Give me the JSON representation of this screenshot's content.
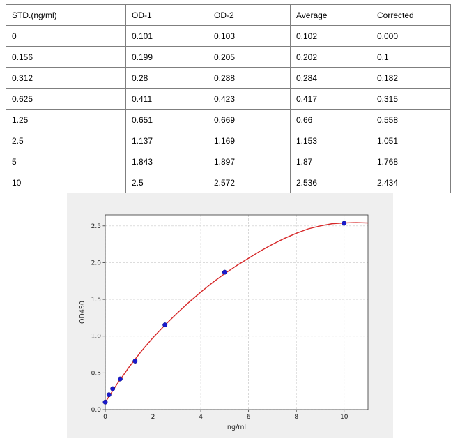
{
  "table": {
    "headers": [
      "STD.(ng/ml)",
      "OD-1",
      "OD-2",
      "Average",
      "Corrected"
    ],
    "rows": [
      [
        "0",
        "0.101",
        "0.103",
        "0.102",
        "0.000"
      ],
      [
        "0.156",
        "0.199",
        "0.205",
        "0.202",
        "0.1"
      ],
      [
        "0.312",
        "0.28",
        "0.288",
        "0.284",
        "0.182"
      ],
      [
        "0.625",
        "0.411",
        "0.423",
        "0.417",
        "0.315"
      ],
      [
        "1.25",
        "0.651",
        "0.669",
        "0.66",
        "0.558"
      ],
      [
        "2.5",
        "1.137",
        "1.169",
        "1.153",
        "1.051"
      ],
      [
        "5",
        "1.843",
        "1.897",
        "1.87",
        "1.768"
      ],
      [
        "10",
        "2.5",
        "2.572",
        "2.536",
        "2.434"
      ]
    ]
  },
  "chart_data": {
    "type": "scatter",
    "title": "",
    "xlabel": "ng/ml",
    "ylabel": "OD450",
    "xlim": [
      0,
      11
    ],
    "ylim": [
      0,
      2.65
    ],
    "xticks": [
      0,
      2,
      4,
      6,
      8,
      10
    ],
    "xtick_labels": [
      "0",
      "2",
      "4",
      "6",
      "8",
      "10"
    ],
    "yticks": [
      0,
      0.5,
      1.0,
      1.5,
      2.0,
      2.5
    ],
    "ytick_labels": [
      "0.0",
      "0.5",
      "1.0",
      "1.5",
      "2.0",
      "2.5"
    ],
    "grid": true,
    "series": [
      {
        "kind": "points",
        "x": [
          0,
          0.156,
          0.312,
          0.625,
          1.25,
          2.5,
          5,
          10
        ],
        "y": [
          0.102,
          0.202,
          0.284,
          0.417,
          0.66,
          1.153,
          1.87,
          2.536
        ],
        "color": "#1a1acc"
      },
      {
        "kind": "fit-curve",
        "x": [
          0,
          0.5,
          1,
          1.5,
          2,
          2.5,
          3,
          3.5,
          4,
          4.5,
          5,
          5.5,
          6,
          6.5,
          7,
          7.5,
          8,
          8.5,
          9,
          9.5,
          10,
          10.5,
          11
        ],
        "y": [
          0.1,
          0.35,
          0.58,
          0.79,
          0.98,
          1.15,
          1.31,
          1.46,
          1.6,
          1.73,
          1.85,
          1.96,
          2.06,
          2.16,
          2.25,
          2.33,
          2.4,
          2.46,
          2.5,
          2.53,
          2.54,
          2.545,
          2.54
        ],
        "color": "#d62728"
      }
    ]
  }
}
